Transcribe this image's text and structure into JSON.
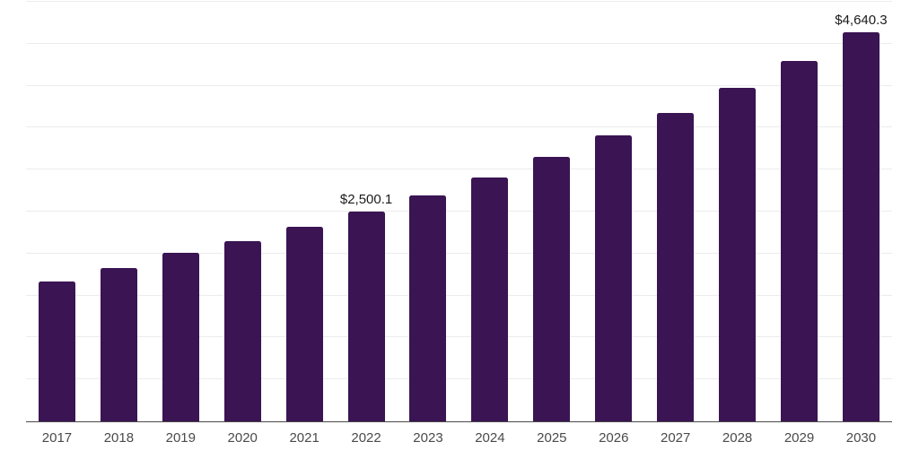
{
  "chart_data": {
    "type": "bar",
    "title": "",
    "xlabel": "",
    "ylabel": "",
    "categories": [
      "2017",
      "2018",
      "2019",
      "2020",
      "2021",
      "2022",
      "2023",
      "2024",
      "2025",
      "2026",
      "2027",
      "2028",
      "2029",
      "2030"
    ],
    "values": [
      1665,
      1825,
      2010,
      2145,
      2315,
      2500.1,
      2695,
      2910,
      3155,
      3405,
      3675,
      3975,
      4295,
      4640.3
    ],
    "data_labels": [
      {
        "category": "2022",
        "text": "$2,500.1"
      },
      {
        "category": "2030",
        "text": "$4,640.3"
      }
    ],
    "ylim": [
      0,
      5000
    ],
    "gridline_step": 500,
    "grid": "horizontal-only",
    "legend": "none",
    "y_tick_labels_visible": false,
    "bar_color": "#3A1453",
    "gridline_color": "#ECECEC",
    "axis_line_color": "#4A4A4A",
    "tick_label_color": "#4A4A4A",
    "data_label_color": "#1A1A1A"
  }
}
